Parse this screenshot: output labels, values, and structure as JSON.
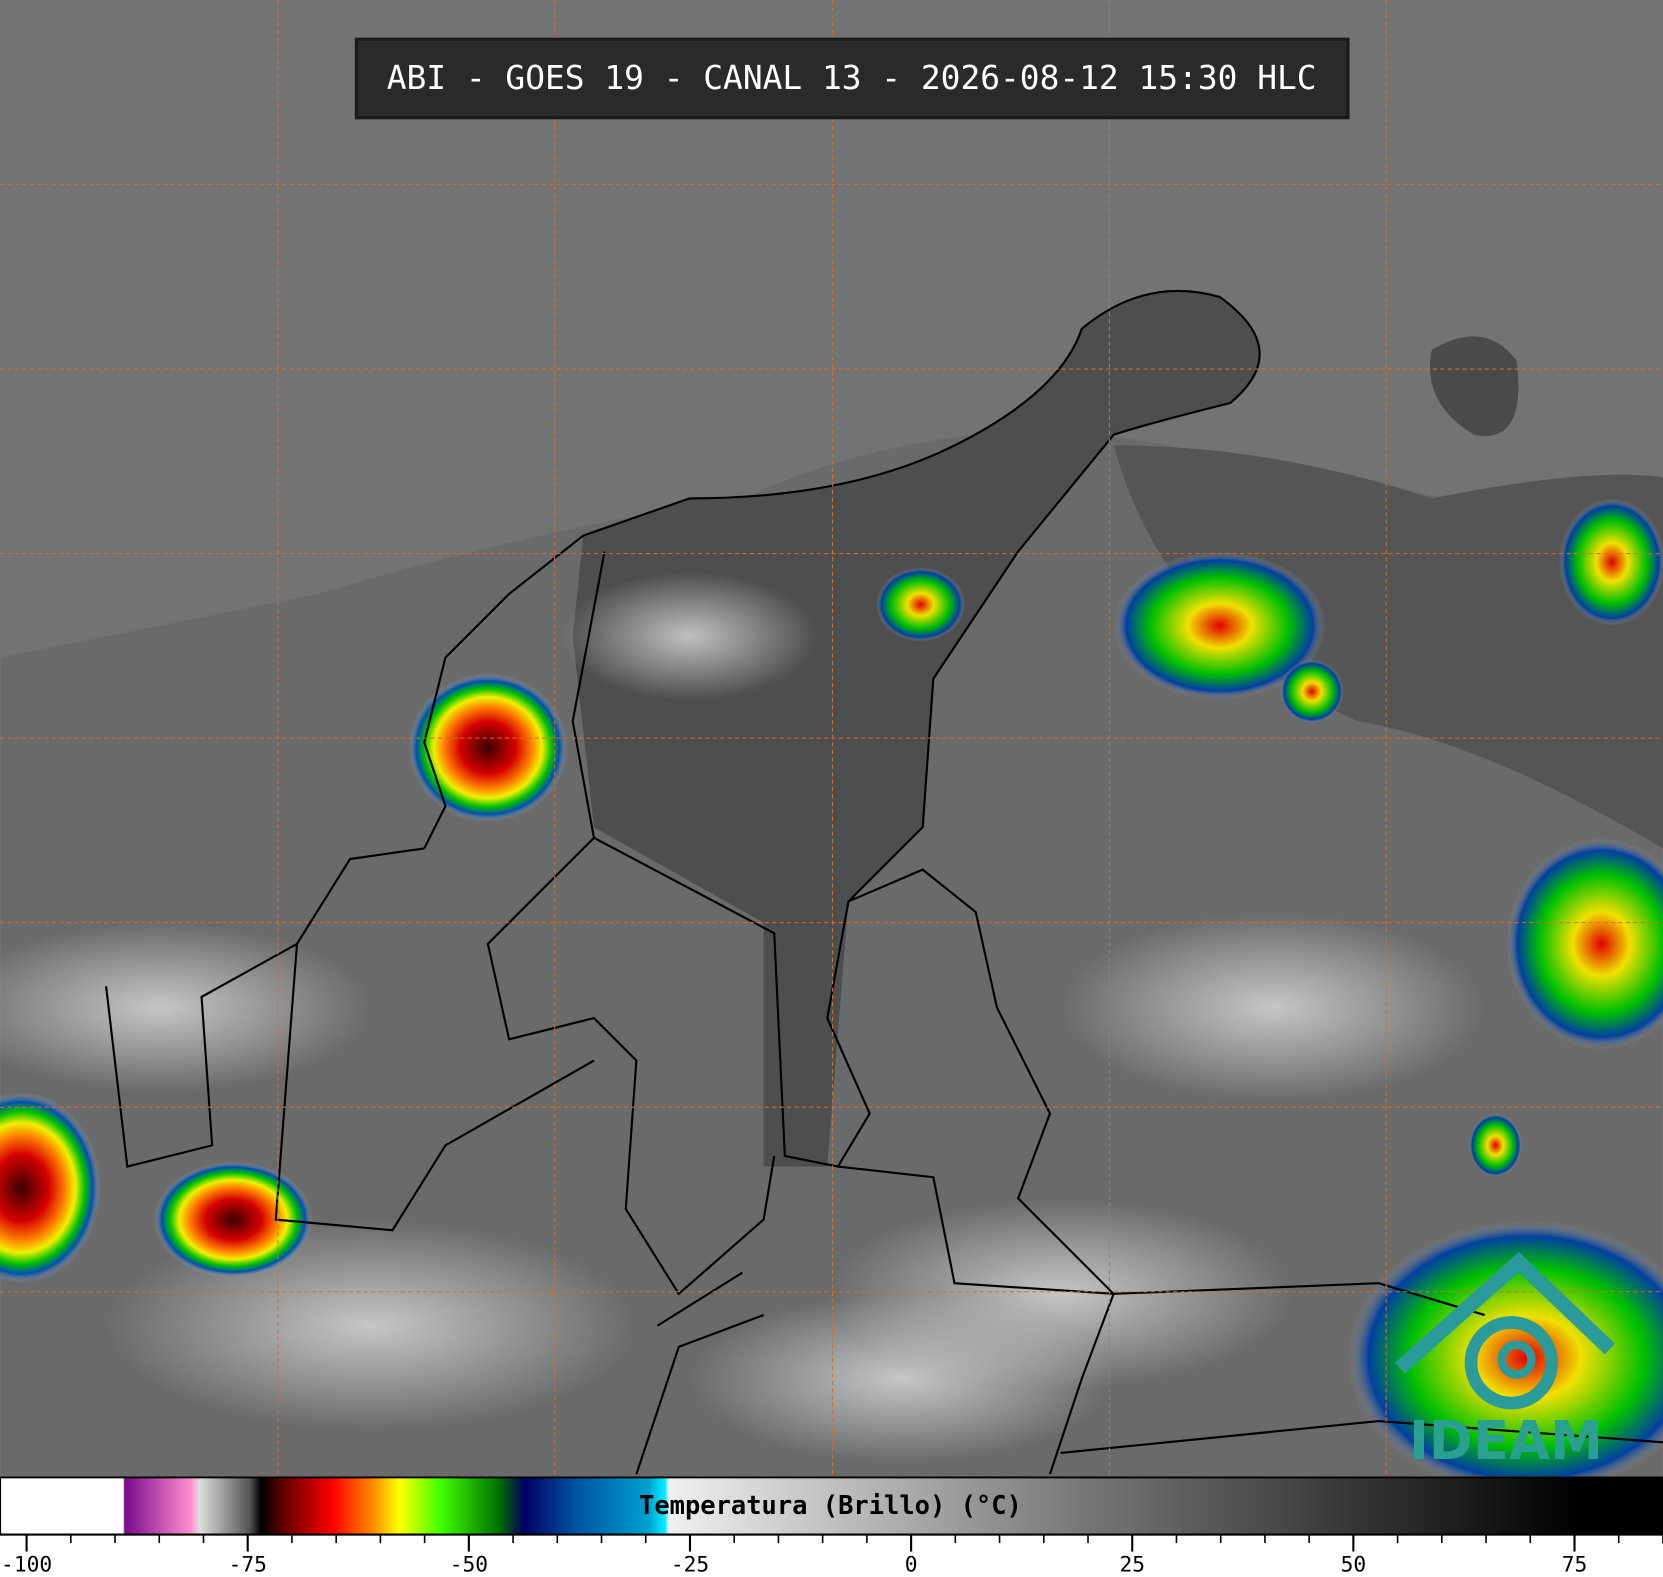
{
  "title": "ABI - GOES 19 - CANAL 13 - 2026-08-12 15:30 HLC",
  "logo": "IDEAM",
  "colorbar": {
    "label": "Temperatura (Brillo) (°C)",
    "lim": [
      -103,
      85
    ],
    "ticks": [
      -100,
      -75,
      -50,
      -25,
      0,
      25,
      50,
      75
    ]
  }
}
